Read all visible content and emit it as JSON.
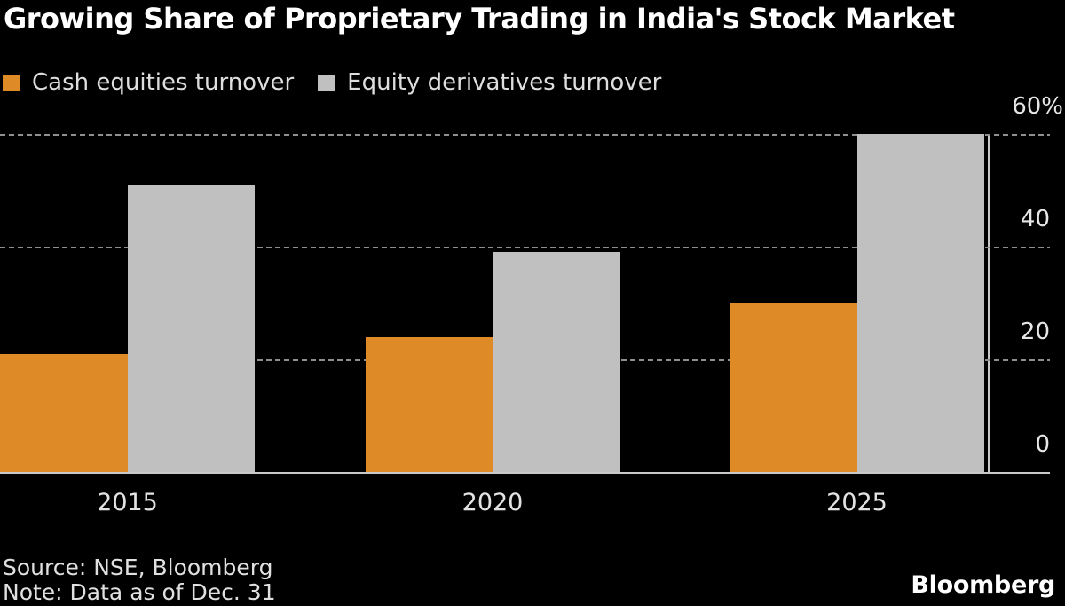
{
  "chart_data": {
    "type": "bar",
    "title": "Growing Share of Proprietary Trading in India's Stock Market",
    "categories": [
      "2015",
      "2020",
      "2025"
    ],
    "series": [
      {
        "name": "Cash equities turnover",
        "color": "#DE8A27",
        "values": [
          21,
          24,
          30
        ]
      },
      {
        "name": "Equity derivatives turnover",
        "color": "#C0C0C0",
        "values": [
          51,
          39,
          60
        ]
      }
    ],
    "unit": "%",
    "ylim": [
      0,
      60
    ],
    "yticks": [
      {
        "label": "60%",
        "value": 60
      },
      {
        "label": "40",
        "value": 40
      },
      {
        "label": "20",
        "value": 20
      },
      {
        "label": "0",
        "value": 0
      }
    ],
    "grid": "horizontal-dashed",
    "legend_position": "top-left"
  },
  "footer": {
    "source": "Source: NSE, Bloomberg",
    "note": "Note: Data as of Dec. 31",
    "brand": "Bloomberg"
  },
  "colors": {
    "background": "#000000",
    "bar_orange": "#DE8A27",
    "bar_gray": "#C0C0C0",
    "gridline": "#8F8F8F",
    "axis_line": "#C8C8C8",
    "title_text": "#FFFFFF",
    "label_text": "#E6E6E6"
  }
}
